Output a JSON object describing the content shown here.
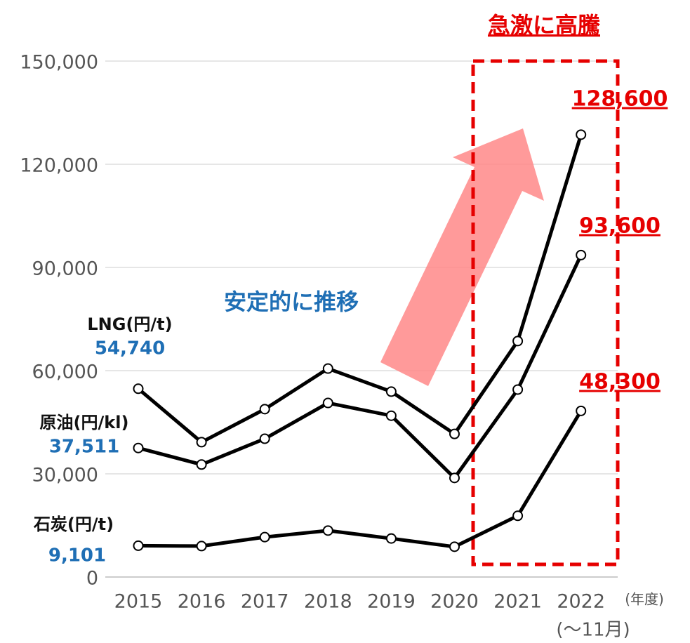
{
  "chart_data": {
    "type": "line",
    "categories": [
      "2015",
      "2016",
      "2017",
      "2018",
      "2019",
      "2020",
      "2021",
      "2022"
    ],
    "series": [
      {
        "name": "LNG(円/t)",
        "color": "#000000",
        "values": [
          54740,
          39200,
          48800,
          60600,
          53900,
          41600,
          68600,
          128600
        ],
        "value_labels": [
          "54,740",
          null,
          null,
          null,
          null,
          null,
          null,
          "128,600"
        ]
      },
      {
        "name": "原油(円/kl)",
        "color": "#000000",
        "values": [
          37511,
          32700,
          40200,
          50600,
          46900,
          28800,
          54500,
          93600
        ],
        "value_labels": [
          "37,511",
          null,
          null,
          null,
          null,
          null,
          null,
          "93,600"
        ]
      },
      {
        "name": "石炭(円/t)",
        "color": "#000000",
        "values": [
          9101,
          9000,
          11600,
          13500,
          11200,
          8800,
          17800,
          48300
        ],
        "value_labels": [
          "9,101",
          null,
          null,
          null,
          null,
          null,
          null,
          "48,300"
        ]
      }
    ],
    "ylim": [
      0,
      150000
    ],
    "yticks": [
      {
        "value": 0,
        "label": "0"
      },
      {
        "value": 30000,
        "label": "30,000"
      },
      {
        "value": 60000,
        "label": "60,000"
      },
      {
        "value": 90000,
        "label": "90,000"
      },
      {
        "value": 120000,
        "label": "120,000"
      },
      {
        "value": 150000,
        "label": "150,000"
      }
    ],
    "grid": true,
    "annotations": [
      "急激に高騰",
      "安定的に推移",
      "(年度)",
      "(～11月)"
    ]
  }
}
